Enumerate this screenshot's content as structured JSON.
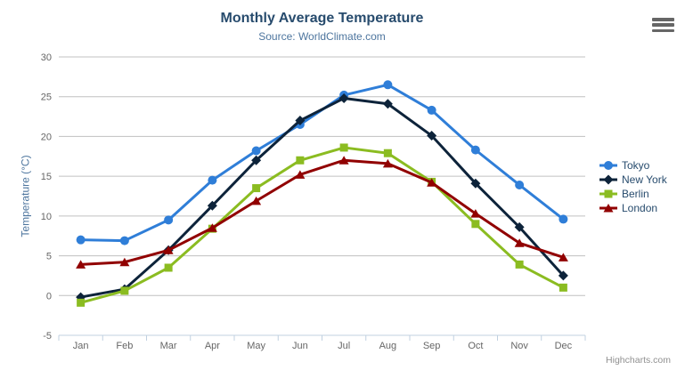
{
  "chart": {
    "title": "Monthly Average Temperature",
    "subtitle": "Source: WorldClimate.com",
    "credits": "Highcharts.com",
    "icons": {
      "export_menu": "hamburger-icon"
    },
    "colors": {
      "title": "#274b6d",
      "subtitle": "#4d759e",
      "axis_title": "#4d759e",
      "axis_labels": "#666666",
      "grid_line": "#C0C0C0",
      "axis_line": "#C0D0E0",
      "credits": "#909090",
      "menu_icon": "#666666",
      "background": "#ffffff"
    }
  },
  "chart_data": {
    "type": "line",
    "title": "Monthly Average Temperature",
    "subtitle": "Source: WorldClimate.com",
    "xlabel": "",
    "ylabel": "Temperature (°C)",
    "ylim": [
      -5,
      30
    ],
    "yticks": [
      -5,
      0,
      5,
      10,
      15,
      20,
      25,
      30
    ],
    "grid": true,
    "legend_position": "right",
    "categories": [
      "Jan",
      "Feb",
      "Mar",
      "Apr",
      "May",
      "Jun",
      "Jul",
      "Aug",
      "Sep",
      "Oct",
      "Nov",
      "Dec"
    ],
    "series": [
      {
        "name": "Tokyo",
        "color": "#2f7ed8",
        "symbol": "circle",
        "values": [
          7.0,
          6.9,
          9.5,
          14.5,
          18.2,
          21.5,
          25.2,
          26.5,
          23.3,
          18.3,
          13.9,
          9.6
        ]
      },
      {
        "name": "New York",
        "color": "#0d233a",
        "symbol": "diamond",
        "values": [
          -0.2,
          0.8,
          5.7,
          11.3,
          17.0,
          22.0,
          24.8,
          24.1,
          20.1,
          14.1,
          8.6,
          2.5
        ]
      },
      {
        "name": "Berlin",
        "color": "#8bbc21",
        "symbol": "square",
        "values": [
          -0.9,
          0.6,
          3.5,
          8.4,
          13.5,
          17.0,
          18.6,
          17.9,
          14.3,
          9.0,
          3.9,
          1.0
        ]
      },
      {
        "name": "London",
        "color": "#910000",
        "symbol": "triangle",
        "values": [
          3.9,
          4.2,
          5.7,
          8.5,
          11.9,
          15.2,
          17.0,
          16.6,
          14.2,
          10.3,
          6.6,
          4.8
        ]
      }
    ]
  }
}
